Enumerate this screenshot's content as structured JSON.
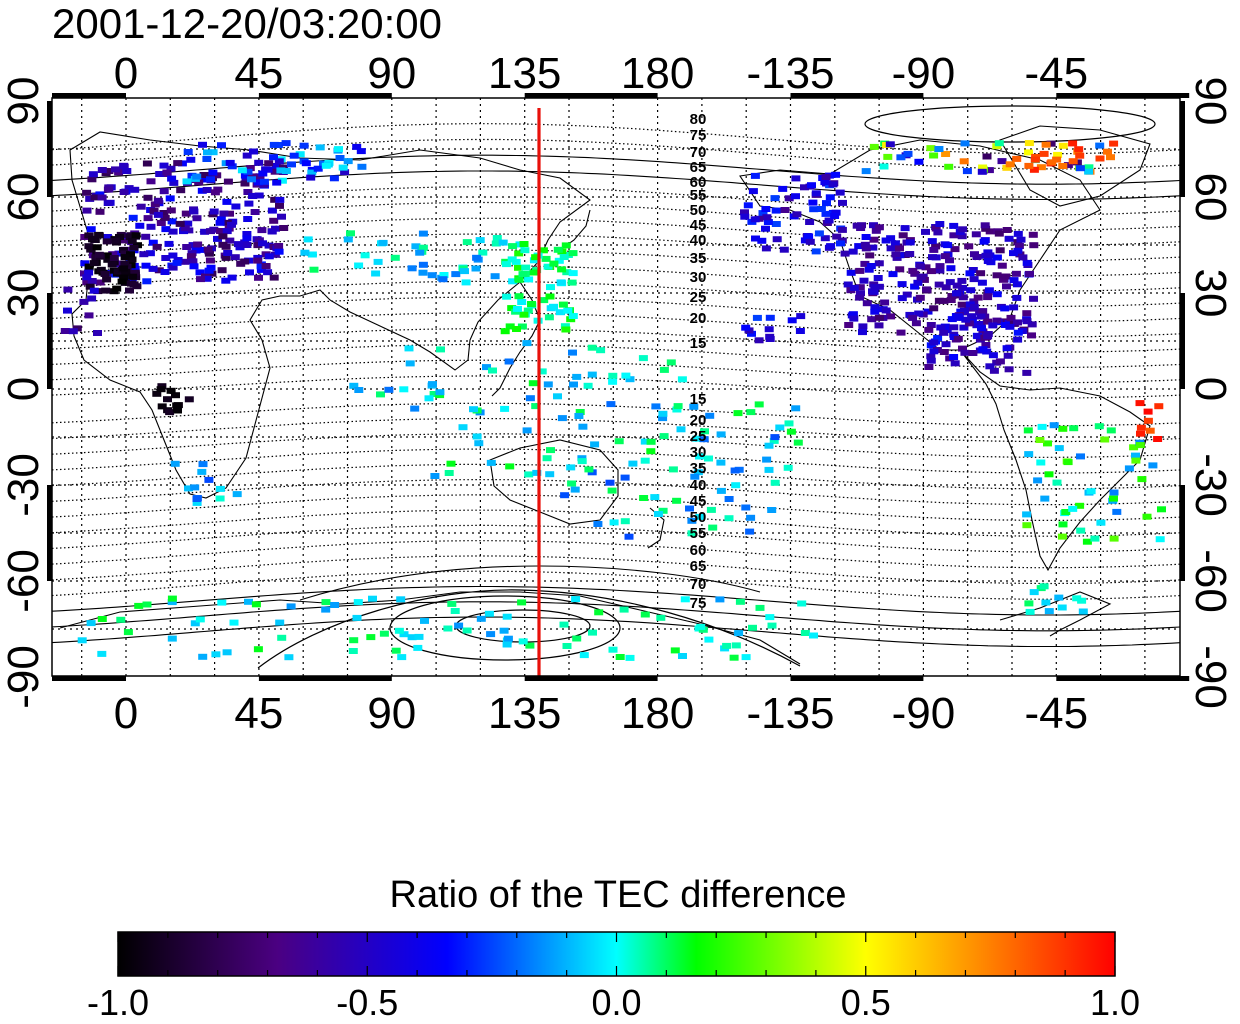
{
  "map": {
    "timestamp": "2001-12-20/03:20:00",
    "lon_ticks": [
      "0",
      "45",
      "90",
      "135",
      "180",
      "-135",
      "-90",
      "-45"
    ],
    "lat_ticks": [
      "90",
      "60",
      "30",
      "0",
      "-30",
      "-60",
      "-90"
    ],
    "north_contour_labels": [
      "80",
      "75",
      "70",
      "65",
      "60",
      "55",
      "50",
      "45",
      "40",
      "35",
      "30",
      "25",
      "20",
      "15"
    ],
    "south_contour_labels": [
      "15",
      "20",
      "25",
      "30",
      "35",
      "40",
      "45",
      "50",
      "55",
      "60",
      "65",
      "70",
      "75"
    ],
    "reference_meridian_color": "#e8100a",
    "grid": "dotted"
  },
  "colorbar": {
    "title": "Ratio of the TEC difference",
    "tick_labels": [
      "-1.0",
      "-0.5",
      "0.0",
      "0.5",
      "1.0"
    ],
    "range": [
      -1.0,
      1.0
    ],
    "colors": [
      "#000000",
      "#4b0082",
      "#0000ff",
      "#00ffff",
      "#00ff00",
      "#ffff00",
      "#ff0000"
    ]
  }
}
